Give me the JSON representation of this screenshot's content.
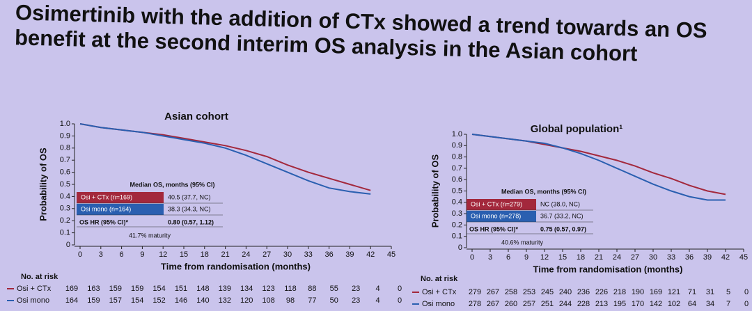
{
  "slide": {
    "title_lines": [
      "Osimertinib with the addition of CTx showed a trend towards an OS",
      "benefit at the second interim OS analysis in the Asian cohort"
    ]
  },
  "chart_data": [
    {
      "type": "line",
      "title": "Asian cohort",
      "x_label": "Time from randomisation (months)",
      "y_label": "Probability of OS",
      "xlim": [
        0,
        45
      ],
      "ylim": [
        0,
        1
      ],
      "xticks": [
        0,
        3,
        6,
        9,
        12,
        15,
        18,
        21,
        24,
        27,
        30,
        33,
        36,
        39,
        42,
        45
      ],
      "yticks": [
        0,
        0.1,
        0.2,
        0.3,
        0.4,
        0.5,
        0.6,
        0.7,
        0.8,
        0.9,
        {
          "value": 1,
          "label": "1.0"
        }
      ],
      "x": [
        0,
        3,
        6,
        9,
        12,
        15,
        18,
        21,
        24,
        27,
        30,
        33,
        36,
        39,
        42
      ],
      "series": [
        {
          "name": "Osi + CTx",
          "color": "#a3283c",
          "values": [
            1,
            0.97,
            0.95,
            0.93,
            0.91,
            0.88,
            0.85,
            0.82,
            0.78,
            0.73,
            0.66,
            0.6,
            0.55,
            0.5,
            0.45
          ],
          "at_risk": [
            169,
            163,
            159,
            159,
            154,
            151,
            148,
            139,
            134,
            123,
            118,
            88,
            55,
            23,
            4,
            0
          ]
        },
        {
          "name": "Osi mono",
          "color": "#2a5fb0",
          "values": [
            1,
            0.97,
            0.95,
            0.93,
            0.9,
            0.87,
            0.84,
            0.8,
            0.74,
            0.67,
            0.6,
            0.53,
            0.47,
            0.44,
            0.42
          ],
          "at_risk": [
            164,
            159,
            157,
            154,
            152,
            146,
            140,
            132,
            120,
            108,
            98,
            77,
            50,
            23,
            4,
            0
          ]
        }
      ],
      "risk_label": "No. at risk",
      "median_table": {
        "header": "Median OS, months (95% CI)",
        "rows": [
          [
            "Osi + CTx (n=169)",
            "40.5 (37.7, NC)"
          ],
          [
            "Osi mono (n=164)",
            "38.3 (34.3, NC)"
          ],
          [
            "OS HR (95% CI)*",
            "0.80 (0.57, 1.12)"
          ]
        ],
        "maturity": "41.7% maturity"
      }
    },
    {
      "type": "line",
      "title": "Global population¹",
      "x_label": "Time from randomisation (months)",
      "y_label": "Probability of OS",
      "xlim": [
        0,
        45
      ],
      "ylim": [
        0,
        1
      ],
      "xticks": [
        0,
        3,
        6,
        9,
        12,
        15,
        18,
        21,
        24,
        27,
        30,
        33,
        36,
        39,
        42,
        45
      ],
      "yticks": [
        0,
        0.1,
        0.2,
        0.3,
        0.4,
        0.5,
        0.6,
        0.7,
        0.8,
        0.9,
        {
          "value": 1,
          "label": "1.0"
        }
      ],
      "x": [
        0,
        3,
        6,
        9,
        12,
        15,
        18,
        21,
        24,
        27,
        30,
        33,
        36,
        39,
        42
      ],
      "series": [
        {
          "name": "Osi + CTx",
          "color": "#a3283c",
          "values": [
            1,
            0.98,
            0.96,
            0.94,
            0.91,
            0.88,
            0.85,
            0.81,
            0.77,
            0.72,
            0.66,
            0.61,
            0.55,
            0.5,
            0.47
          ],
          "at_risk": [
            279,
            267,
            258,
            253,
            245,
            240,
            236,
            226,
            218,
            190,
            169,
            121,
            71,
            31,
            5,
            0
          ]
        },
        {
          "name": "Osi mono",
          "color": "#2a5fb0",
          "values": [
            1,
            0.98,
            0.96,
            0.94,
            0.92,
            0.88,
            0.83,
            0.77,
            0.7,
            0.63,
            0.56,
            0.5,
            0.45,
            0.42,
            0.42
          ],
          "at_risk": [
            278,
            267,
            260,
            257,
            251,
            244,
            228,
            213,
            195,
            170,
            142,
            102,
            64,
            34,
            7,
            0
          ]
        }
      ],
      "risk_label": "No. at risk",
      "median_table": {
        "header": "Median OS, months (95% CI)",
        "rows": [
          [
            "Osi + CTx (n=279)",
            "NC (38.0, NC)"
          ],
          [
            "Osi mono (n=278)",
            "36.7 (33.2, NC)"
          ],
          [
            "OS HR (95% CI)*",
            "0.75 (0.57, 0.97)"
          ]
        ],
        "maturity": "40.6% maturity"
      }
    }
  ]
}
